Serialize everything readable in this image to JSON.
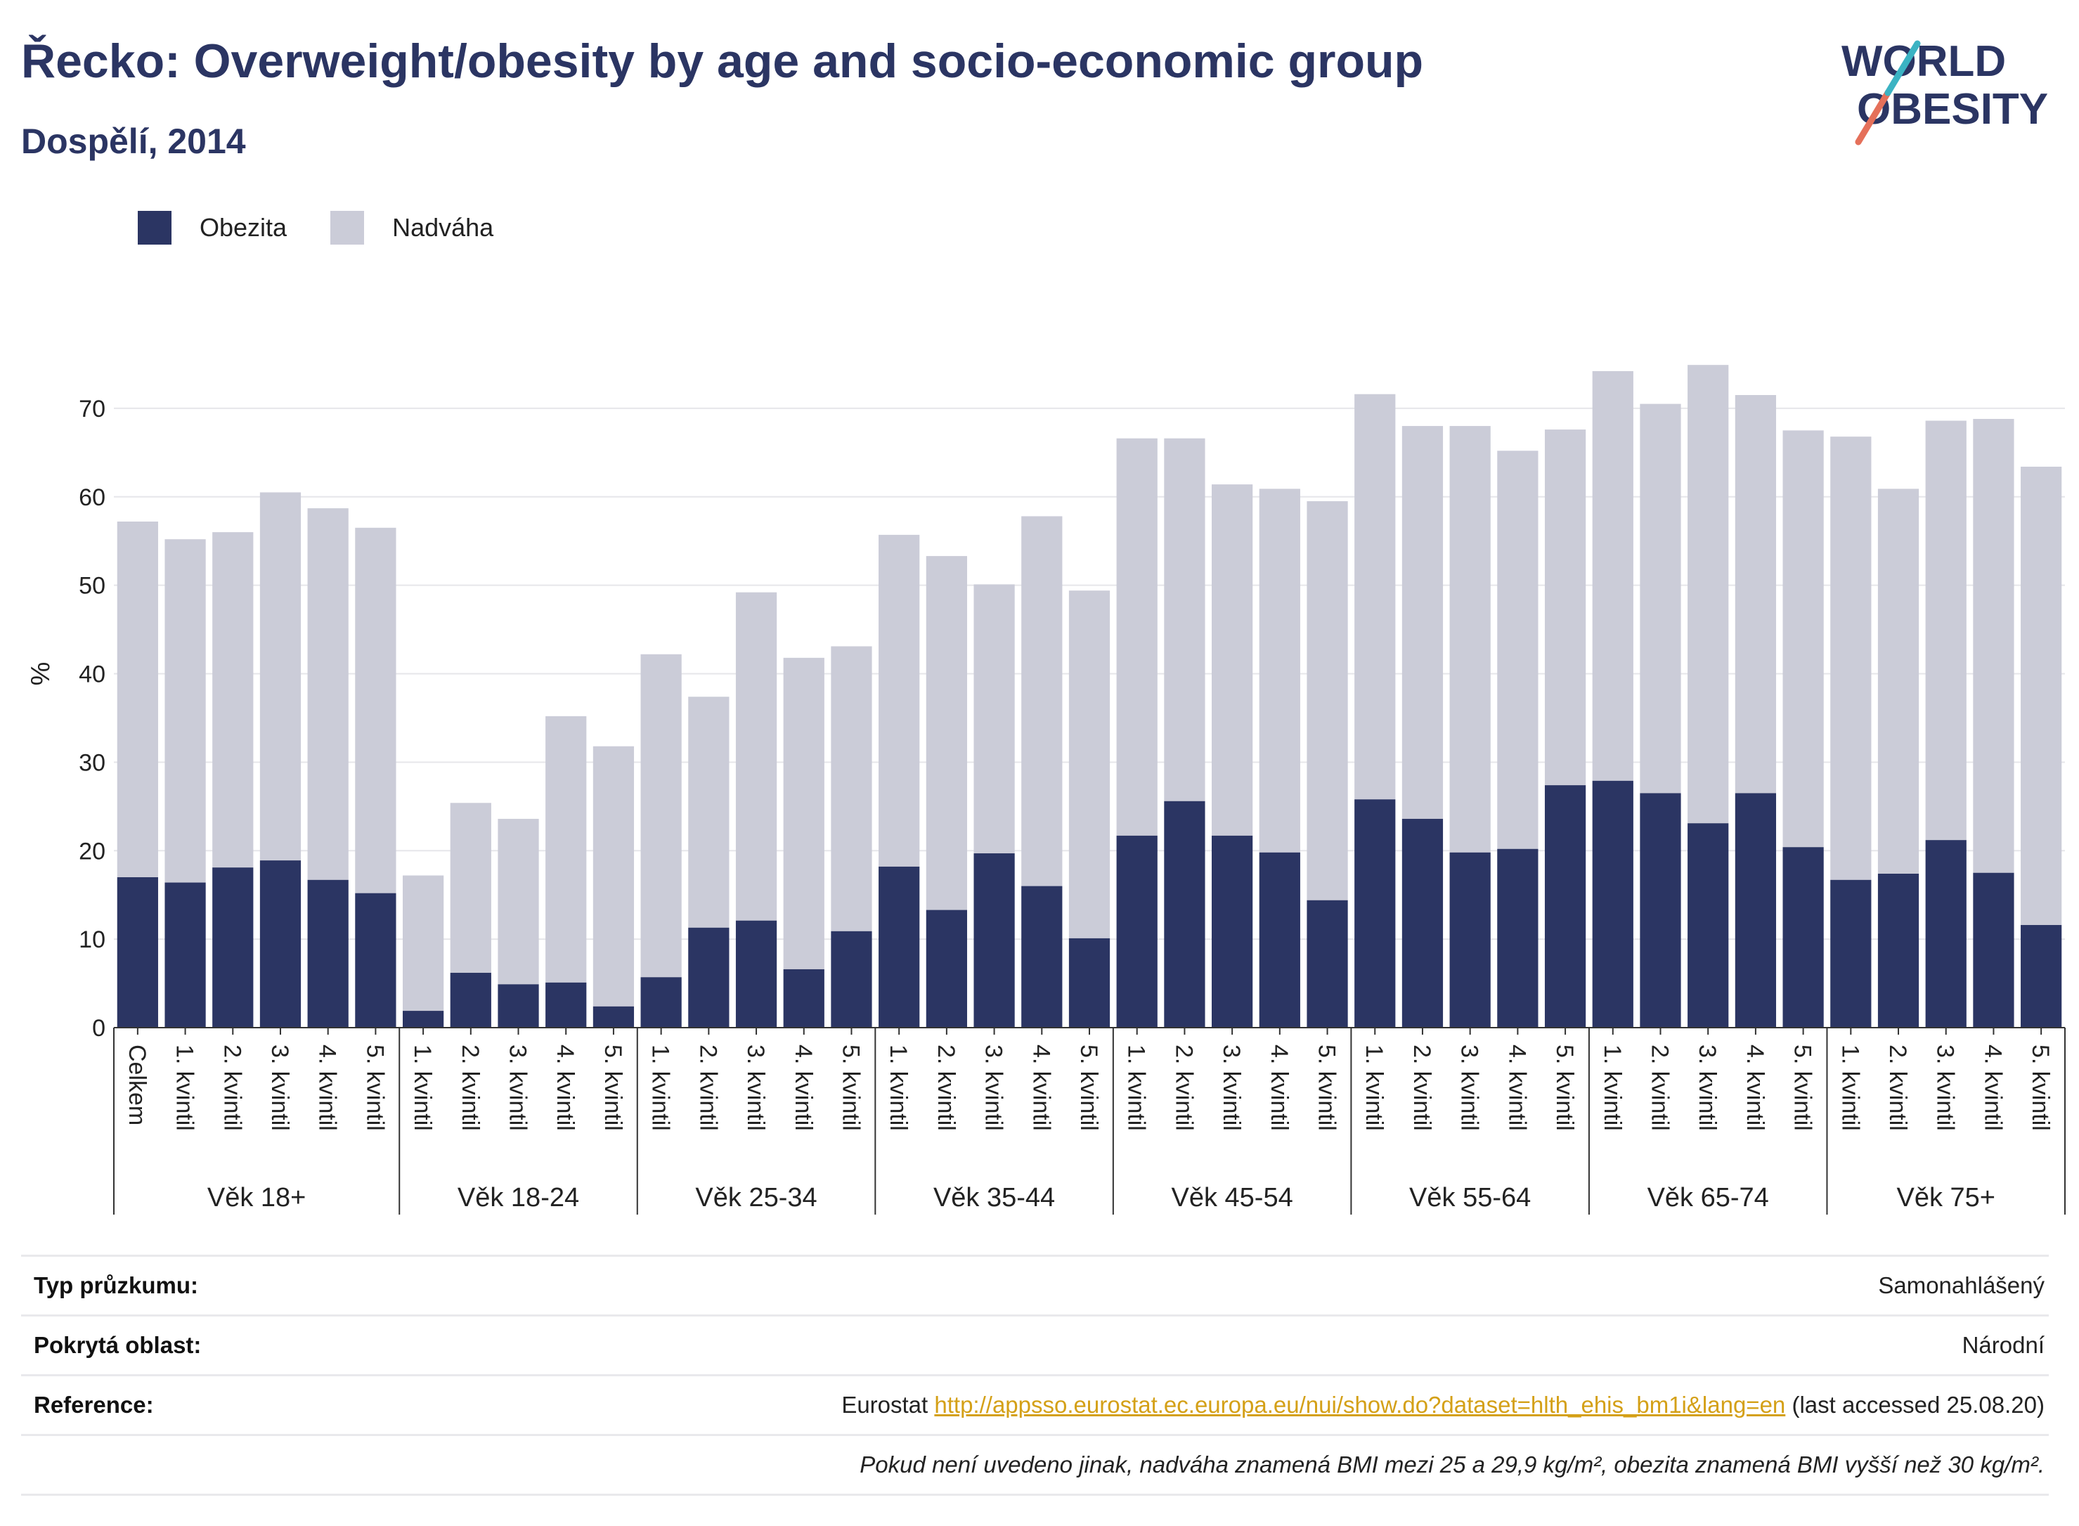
{
  "header": {
    "title": "Řecko: Overweight/obesity by age and socio-economic group",
    "subtitle": "Dospělí, 2014"
  },
  "logo": {
    "line1": "WORLD",
    "line2": "OBESITY"
  },
  "colors": {
    "obesity": "#2b3563",
    "overweight": "#cbccd8",
    "title": "#2b3563",
    "link": "#d4a017",
    "grid": "#e6e6ea"
  },
  "chart_data": {
    "type": "bar",
    "stacked": true,
    "ylabel": "%",
    "ylim": [
      0,
      80
    ],
    "yticks": [
      0,
      10,
      20,
      30,
      40,
      50,
      60,
      70
    ],
    "grid": true,
    "legend_position": "top-left",
    "legend": [
      "Obezita",
      "Nadváha"
    ],
    "groups": [
      {
        "label": "Věk 18+",
        "categories": [
          "Celkem",
          "1. kvintil",
          "2. kvintil",
          "3. kvintil",
          "4. kvintil",
          "5. kvintil"
        ]
      },
      {
        "label": "Věk 18-24",
        "categories": [
          "1. kvintil",
          "2. kvintil",
          "3. kvintil",
          "4. kvintil",
          "5. kvintil"
        ]
      },
      {
        "label": "Věk 25-34",
        "categories": [
          "1. kvintil",
          "2. kvintil",
          "3. kvintil",
          "4. kvintil",
          "5. kvintil"
        ]
      },
      {
        "label": "Věk 35-44",
        "categories": [
          "1. kvintil",
          "2. kvintil",
          "3. kvintil",
          "4. kvintil",
          "5. kvintil"
        ]
      },
      {
        "label": "Věk 45-54",
        "categories": [
          "1. kvintil",
          "2. kvintil",
          "3. kvintil",
          "4. kvintil",
          "5. kvintil"
        ]
      },
      {
        "label": "Věk 55-64",
        "categories": [
          "1. kvintil",
          "2. kvintil",
          "3. kvintil",
          "4. kvintil",
          "5. kvintil"
        ]
      },
      {
        "label": "Věk 65-74",
        "categories": [
          "1. kvintil",
          "2. kvintil",
          "3. kvintil",
          "4. kvintil",
          "5. kvintil"
        ]
      },
      {
        "label": "Věk 75+",
        "categories": [
          "1. kvintil",
          "2. kvintil",
          "3. kvintil",
          "4. kvintil",
          "5. kvintil"
        ]
      }
    ],
    "series": [
      {
        "name": "Obezita",
        "values": [
          17.0,
          16.4,
          18.1,
          18.9,
          16.7,
          15.2,
          1.9,
          6.2,
          4.9,
          5.1,
          2.4,
          5.7,
          11.3,
          12.1,
          6.6,
          10.9,
          18.2,
          13.3,
          19.7,
          16.0,
          10.1,
          21.7,
          25.6,
          21.7,
          19.8,
          14.4,
          25.8,
          23.6,
          19.8,
          20.2,
          27.4,
          27.9,
          26.5,
          23.1,
          26.5,
          20.4,
          16.7,
          17.4,
          21.2,
          17.5,
          11.6
        ]
      },
      {
        "name": "Nadváha",
        "values": [
          40.2,
          38.8,
          37.9,
          41.6,
          42.0,
          41.3,
          15.3,
          19.2,
          18.7,
          30.1,
          29.4,
          36.5,
          26.1,
          37.1,
          35.2,
          32.2,
          37.5,
          40.0,
          30.4,
          41.8,
          39.3,
          44.9,
          41.0,
          39.7,
          41.1,
          45.1,
          45.8,
          44.4,
          48.2,
          45.0,
          40.2,
          46.3,
          44.0,
          51.8,
          45.0,
          47.1,
          50.1,
          43.5,
          47.4,
          51.3,
          51.8
        ]
      }
    ]
  },
  "info": {
    "survey_type_label": "Typ průzkumu:",
    "survey_type_value": "Samonahlášený",
    "area_label": "Pokrytá oblast:",
    "area_value": "Národní",
    "reference_label": "Reference:",
    "reference_prefix": "Eurostat",
    "reference_link": "http://appsso.eurostat.ec.europa.eu/nui/show.do?dataset=hlth_ehis_bm1i&lang=en",
    "reference_suffix": "(last accessed 25.08.20)",
    "note": "Pokud není uvedeno jinak, nadváha znamená BMI mezi 25 a 29,9 kg/m², obezita znamená BMI vyšší než 30 kg/m²."
  }
}
